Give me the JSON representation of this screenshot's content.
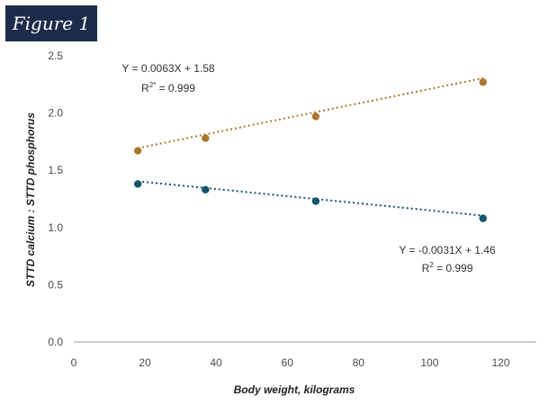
{
  "figure_label": "Figure 1",
  "chart_data": {
    "type": "scatter",
    "title": "",
    "xlabel": "Body weight, kilograms",
    "ylabel": "STTD calcium : STTD phosphorus",
    "xlim": [
      0,
      130
    ],
    "ylim": [
      0,
      2.5
    ],
    "xticks": [
      "0",
      "20",
      "40",
      "60",
      "80",
      "100",
      "120"
    ],
    "yticks": [
      "0.0",
      "0.5",
      "1.0",
      "1.5",
      "2.0",
      "2.5"
    ],
    "grid": false,
    "legend": "none",
    "series": [
      {
        "color": "#a9782f",
        "x": [
          18,
          37,
          68,
          115
        ],
        "y": [
          1.67,
          1.78,
          1.97,
          2.27
        ],
        "trendline": {
          "slope": 0.0063,
          "intercept": 1.58
        },
        "equation": "Y = 0.0063X + 1.58",
        "r2_prefix": "R",
        "r2_sup": "2*",
        "r2_value": " = 0.999"
      },
      {
        "color": "#14566b",
        "x": [
          18,
          37,
          68,
          115
        ],
        "y": [
          1.38,
          1.33,
          1.23,
          1.08
        ],
        "trendline": {
          "slope": -0.0031,
          "intercept": 1.46
        },
        "equation": "Y = -0.0031X + 1.46",
        "r2_prefix": "R",
        "r2_sup": "2",
        "r2_value": " = 0.999"
      }
    ]
  }
}
